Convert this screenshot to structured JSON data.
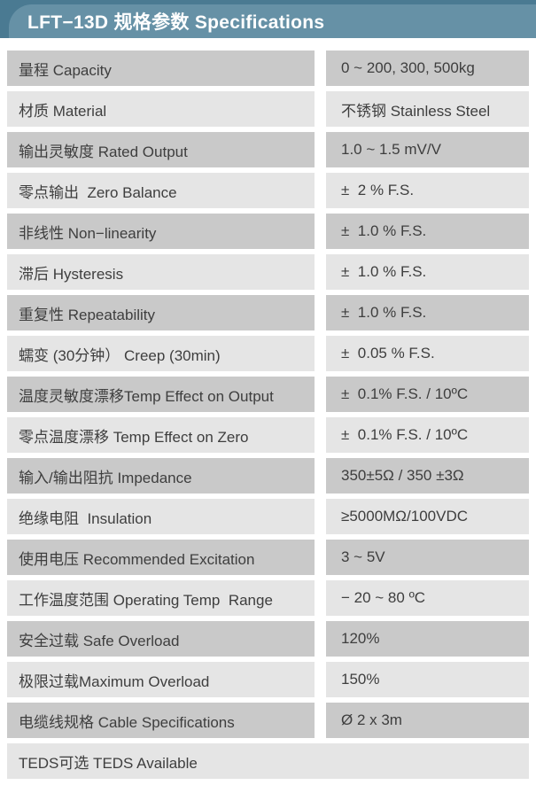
{
  "header": {
    "title": "LFT−13D 规格参数 Specifications"
  },
  "colors": {
    "header_bar_dark": "#4a7a92",
    "header_band_light": "#6691a6",
    "header_text": "#ffffff",
    "row_dark": "#c9c9c9",
    "row_light": "#e5e5e5",
    "row_text": "#3e3e3e",
    "page_background": "#ffffff"
  },
  "table": {
    "rows": [
      {
        "label": "量程 Capacity",
        "value": "0 ~ 200, 300, 500kg",
        "shade": "dark",
        "full_width": false
      },
      {
        "label": "材质 Material",
        "value": "不锈钢 Stainless Steel",
        "shade": "light",
        "full_width": false
      },
      {
        "label": "输出灵敏度 Rated Output",
        "value": "1.0 ~ 1.5 mV/V",
        "shade": "dark",
        "full_width": false
      },
      {
        "label": "零点输出  Zero Balance",
        "value": "±  2 % F.S.",
        "shade": "light",
        "full_width": false
      },
      {
        "label": "非线性 Non−linearity",
        "value": "±  1.0 % F.S.",
        "shade": "dark",
        "full_width": false
      },
      {
        "label": "滞后 Hysteresis",
        "value": "±  1.0 % F.S.",
        "shade": "light",
        "full_width": false
      },
      {
        "label": "重复性 Repeatability",
        "value": "±  1.0 % F.S.",
        "shade": "dark",
        "full_width": false
      },
      {
        "label": "蠕变 (30分钟） Creep (30min)",
        "value": "±  0.05 % F.S.",
        "shade": "light",
        "full_width": false
      },
      {
        "label": "温度灵敏度漂移Temp Effect on Output",
        "value": "±  0.1% F.S. / 10ºC",
        "shade": "dark",
        "full_width": false
      },
      {
        "label": "零点温度漂移 Temp Effect on Zero",
        "value": "±  0.1% F.S. / 10ºC",
        "shade": "light",
        "full_width": false
      },
      {
        "label": "输入/输出阻抗 Impedance",
        "value": "350±5Ω / 350 ±3Ω",
        "shade": "dark",
        "full_width": false
      },
      {
        "label": "绝缘电阻  Insulation",
        "value": "≥5000MΩ/100VDC",
        "shade": "light",
        "full_width": false
      },
      {
        "label": "使用电压 Recommended Excitation",
        "value": "3 ~ 5V",
        "shade": "dark",
        "full_width": false
      },
      {
        "label": "工作温度范围 Operating Temp  Range",
        "value": "− 20 ~ 80 ºC",
        "shade": "light",
        "full_width": false
      },
      {
        "label": "安全过载 Safe Overload",
        "value": "120%",
        "shade": "dark",
        "full_width": false
      },
      {
        "label": "极限过载Maximum Overload",
        "value": "150%",
        "shade": "light",
        "full_width": false
      },
      {
        "label": "电缆线规格 Cable Specifications",
        "value": "Ø 2 x 3m",
        "shade": "dark",
        "full_width": false
      },
      {
        "label": "TEDS可选 TEDS Available",
        "value": "",
        "shade": "light",
        "full_width": true
      }
    ]
  }
}
